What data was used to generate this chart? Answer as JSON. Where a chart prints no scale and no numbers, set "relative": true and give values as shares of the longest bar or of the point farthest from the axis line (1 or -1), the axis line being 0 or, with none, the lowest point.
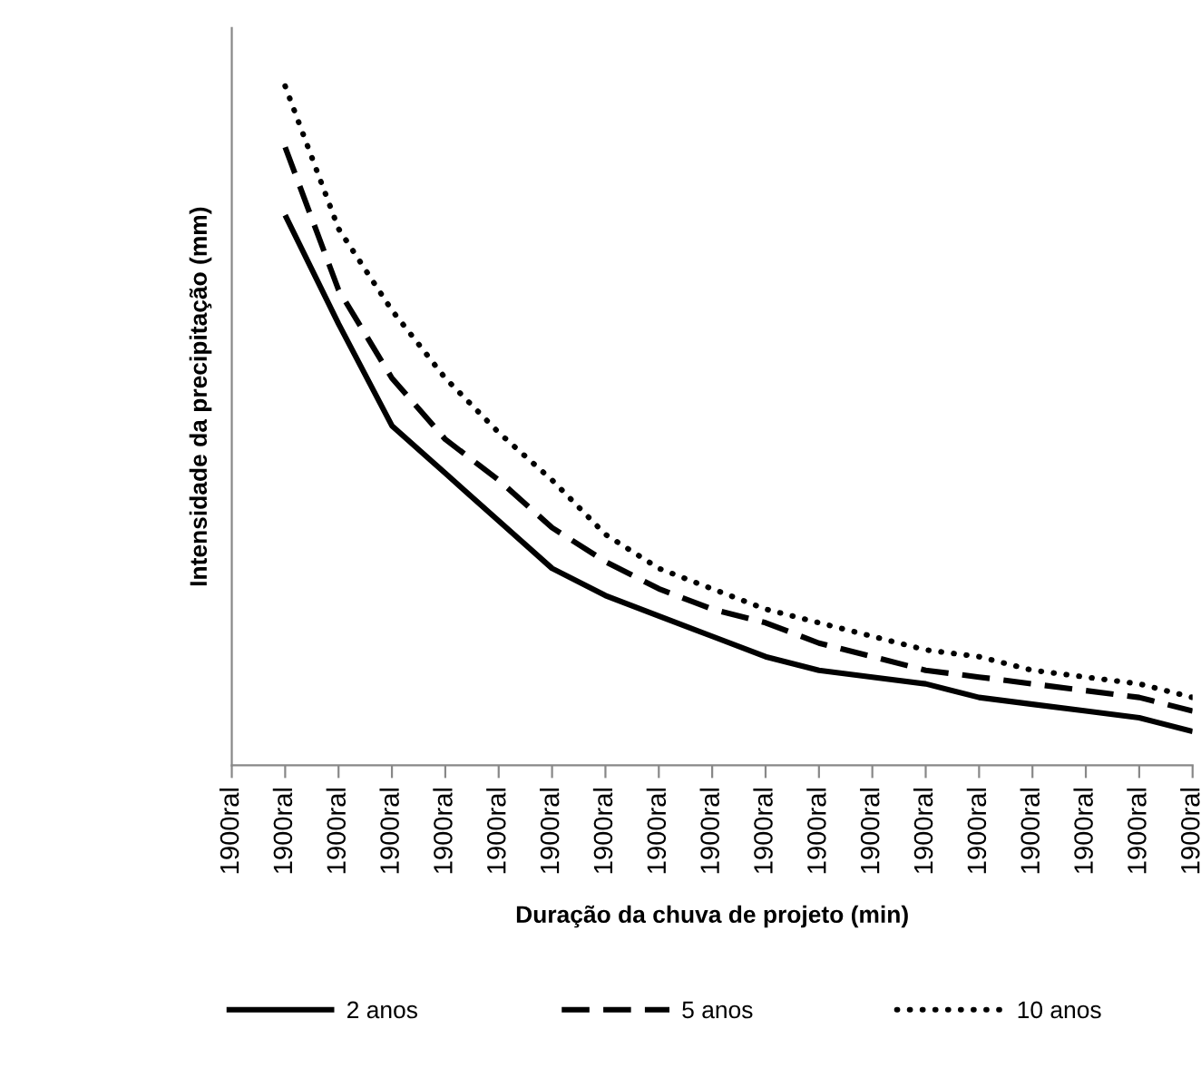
{
  "chart_data": {
    "type": "line",
    "xlabel": "Duração da chuva de projeto (min)",
    "ylabel": "Intensidade da precipitação (mm)",
    "categories": [
      "1900ral",
      "1900ral",
      "1900ral",
      "1900ral",
      "1900ral",
      "1900ral",
      "1900ral",
      "1900ral",
      "1900ral",
      "1900ral",
      "1900ral",
      "1900ral",
      "1900ral",
      "1900ral",
      "1900ral",
      "1900ral",
      "1900ral",
      "1900ral",
      "1900ral"
    ],
    "relative": true,
    "legend": "bottom",
    "marker": "none",
    "series": [
      {
        "name": "2 anos",
        "color": "#000000",
        "line_style": "solid",
        "values": [
          null,
          0.81,
          0.65,
          0.5,
          0.43,
          0.36,
          0.29,
          0.25,
          0.22,
          0.19,
          0.16,
          0.14,
          0.13,
          0.12,
          0.1,
          0.09,
          0.08,
          0.07,
          0.05
        ]
      },
      {
        "name": "5 anos",
        "color": "#000000",
        "line_style": "dashed",
        "values": [
          null,
          0.91,
          0.7,
          0.57,
          0.48,
          0.42,
          0.35,
          0.3,
          0.26,
          0.23,
          0.21,
          0.18,
          0.16,
          0.14,
          0.13,
          0.12,
          0.11,
          0.1,
          0.08
        ]
      },
      {
        "name": "10 anos",
        "color": "#000000",
        "line_style": "dotted",
        "values": [
          null,
          1.0,
          0.79,
          0.67,
          0.57,
          0.49,
          0.42,
          0.34,
          0.29,
          0.26,
          0.23,
          0.21,
          0.19,
          0.17,
          0.16,
          0.14,
          0.13,
          0.12,
          0.1
        ]
      }
    ]
  }
}
